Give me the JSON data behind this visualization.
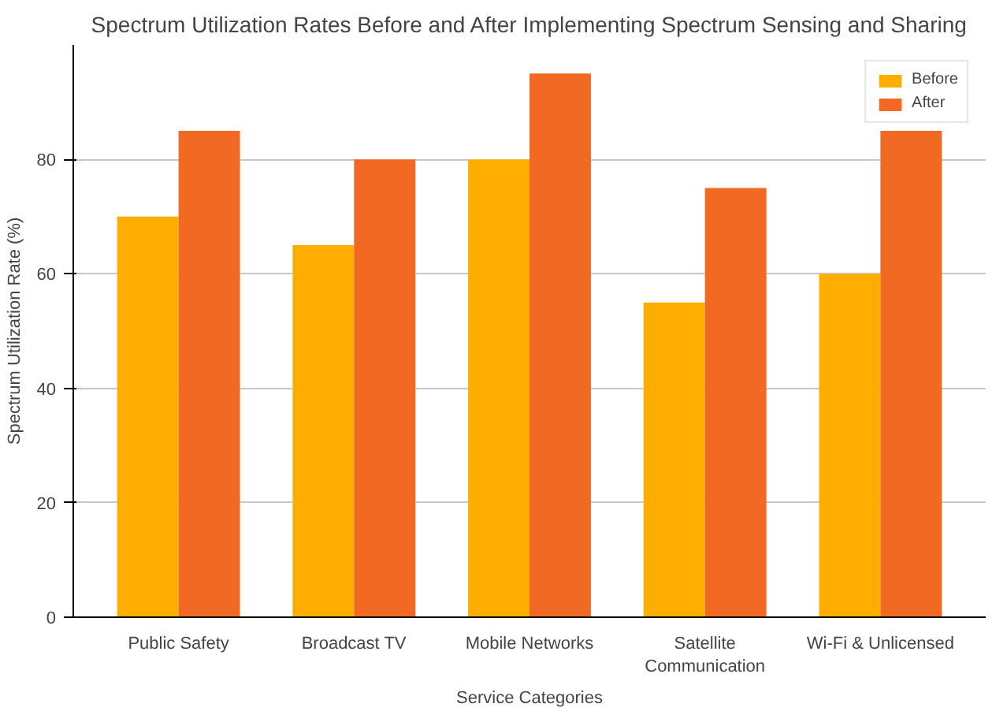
{
  "chart_data": {
    "type": "bar",
    "title": "Spectrum Utilization Rates Before and After Implementing Spectrum Sensing and Sharing",
    "xlabel": "Service Categories",
    "ylabel": "Spectrum Utilization Rate (%)",
    "categories": [
      "Public Safety",
      "Broadcast TV",
      "Mobile Networks",
      "Satellite Communication",
      "Wi-Fi & Unlicensed"
    ],
    "series": [
      {
        "name": "Before",
        "color": "#ffae00",
        "values": [
          70,
          65,
          80,
          55,
          60
        ]
      },
      {
        "name": "After",
        "color": "#f26924",
        "values": [
          85,
          80,
          95,
          75,
          85
        ]
      }
    ],
    "ylim": [
      0,
      100
    ],
    "yticks": [
      0,
      20,
      40,
      60,
      80
    ],
    "grid": "y",
    "legend": "top right"
  }
}
